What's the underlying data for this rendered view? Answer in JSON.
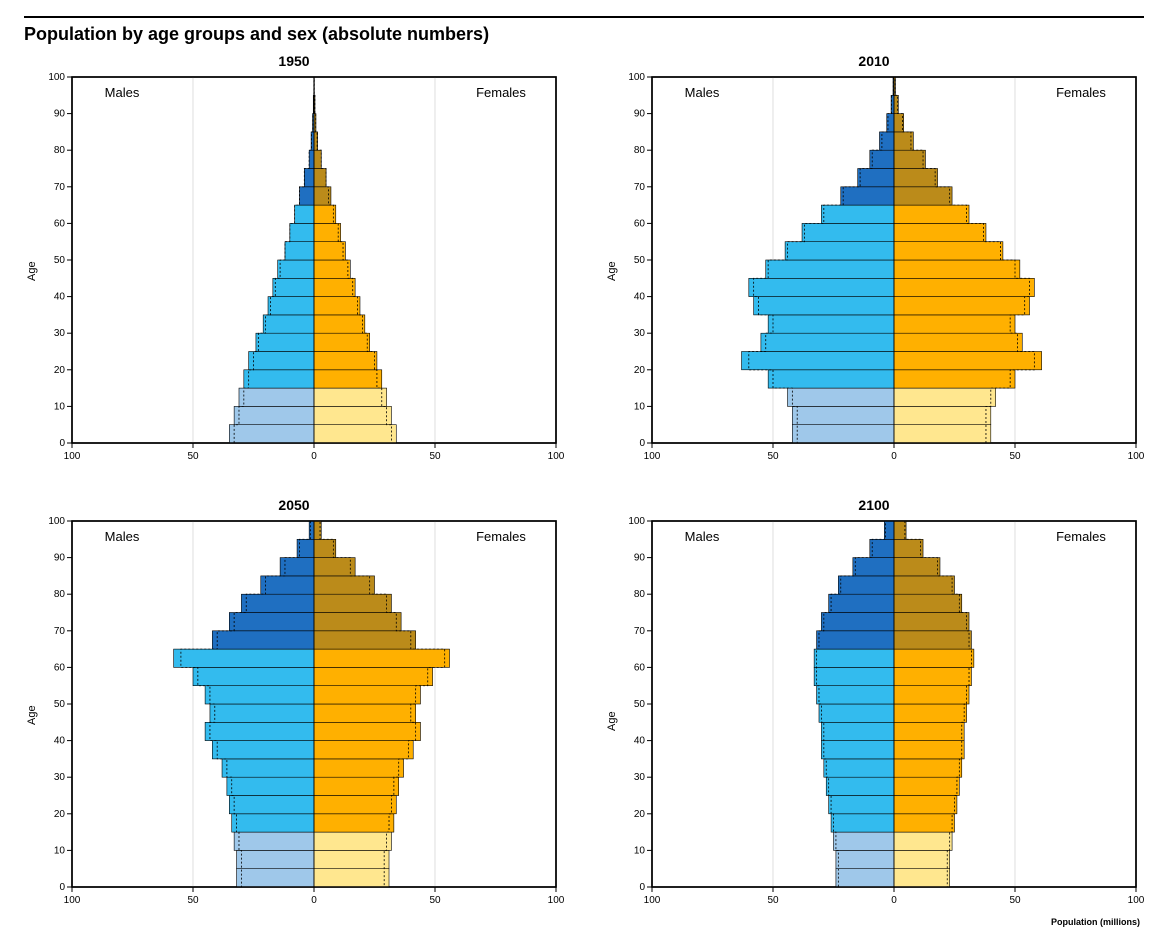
{
  "title": "Population by age groups and sex (absolute numbers)",
  "global_xlabel": "Population (millions)",
  "ylabel": "Age",
  "sex_labels": {
    "male": "Males",
    "female": "Females"
  },
  "label_font_size": 13,
  "axis_font_size": 10,
  "title_font_size": 14,
  "page_title_font_size": 18,
  "axes": {
    "x_limit": 100,
    "x_ticks": [
      100,
      50,
      0,
      50,
      100
    ],
    "y_limit": 100,
    "y_ticks": [
      0,
      10,
      20,
      30,
      40,
      50,
      60,
      70,
      80,
      90,
      100
    ]
  },
  "age_bins": [
    0,
    5,
    10,
    15,
    20,
    25,
    30,
    35,
    40,
    45,
    50,
    55,
    60,
    65,
    70,
    75,
    80,
    85,
    90,
    95
  ],
  "plot": {
    "background_color": "#ffffff",
    "border_color": "#000000",
    "grid_color": "#c9c9c9",
    "tick_color": "#000000",
    "text_color": "#000000"
  },
  "colors": {
    "male_child": "#9fc8ea",
    "male_work": "#33bbee",
    "male_old": "#1f6fc1",
    "female_child": "#ffe78f",
    "female_work": "#ffb000",
    "female_old": "#bb8b1a",
    "overlay_stroke": "#000000"
  },
  "age_group_breaks": {
    "child_max": 15,
    "work_max": 65
  },
  "panels": [
    {
      "year": "1950",
      "males": [
        35,
        33,
        31,
        29,
        27,
        24,
        21,
        19,
        17,
        15,
        12,
        10,
        8,
        6,
        4,
        2,
        1.2,
        0.6,
        0.3,
        0.1
      ],
      "females": [
        34,
        32,
        30,
        28,
        26,
        23,
        21,
        19,
        17,
        15,
        13,
        11,
        9,
        7,
        5,
        3,
        1.5,
        0.8,
        0.4,
        0.15
      ],
      "males_alt": [
        33,
        31,
        29,
        27,
        25,
        23,
        20,
        18,
        16,
        14,
        12,
        10,
        8,
        6,
        4,
        2,
        1.0,
        0.5,
        0.25,
        0.08
      ],
      "females_alt": [
        32,
        30,
        28,
        26,
        25,
        22,
        20,
        18,
        16,
        14,
        12,
        10,
        8,
        6,
        5,
        3,
        1.3,
        0.7,
        0.35,
        0.12
      ]
    },
    {
      "year": "2010",
      "males": [
        42,
        42,
        44,
        52,
        63,
        55,
        52,
        58,
        60,
        53,
        45,
        38,
        30,
        22,
        15,
        10,
        6,
        3,
        1.2,
        0.4
      ],
      "females": [
        40,
        40,
        42,
        50,
        61,
        53,
        50,
        56,
        58,
        52,
        45,
        38,
        31,
        24,
        18,
        13,
        8,
        4,
        1.8,
        0.6
      ],
      "males_alt": [
        40,
        40,
        42,
        50,
        60,
        53,
        50,
        56,
        58,
        52,
        44,
        37,
        29,
        21,
        14,
        9,
        5,
        2.5,
        1.0,
        0.3
      ],
      "females_alt": [
        38,
        38,
        40,
        48,
        58,
        51,
        48,
        54,
        56,
        50,
        44,
        37,
        30,
        23,
        17,
        12,
        7,
        3.5,
        1.5,
        0.5
      ]
    },
    {
      "year": "2050",
      "males": [
        32,
        32,
        33,
        34,
        35,
        36,
        38,
        42,
        45,
        43,
        45,
        50,
        58,
        42,
        35,
        30,
        22,
        14,
        7,
        2
      ],
      "females": [
        31,
        31,
        32,
        33,
        34,
        35,
        37,
        41,
        44,
        42,
        44,
        49,
        56,
        42,
        36,
        32,
        25,
        17,
        9,
        3
      ],
      "males_alt": [
        30,
        30,
        31,
        32,
        33,
        34,
        36,
        40,
        43,
        41,
        43,
        48,
        55,
        40,
        33,
        28,
        20,
        12,
        6,
        1.5
      ],
      "females_alt": [
        29,
        29,
        30,
        31,
        32,
        33,
        35,
        39,
        42,
        40,
        42,
        47,
        54,
        40,
        34,
        30,
        23,
        15,
        8,
        2.5
      ]
    },
    {
      "year": "2100",
      "males": [
        24,
        24,
        25,
        26,
        27,
        28,
        29,
        30,
        30,
        31,
        32,
        33,
        33,
        32,
        30,
        27,
        23,
        17,
        10,
        4
      ],
      "females": [
        23,
        23,
        24,
        25,
        26,
        27,
        28,
        29,
        29,
        30,
        31,
        32,
        33,
        32,
        31,
        28,
        25,
        19,
        12,
        5
      ],
      "males_alt": [
        23,
        23,
        24,
        25,
        26,
        27,
        28,
        29,
        29,
        30,
        31,
        32,
        32,
        31,
        29,
        26,
        22,
        16,
        9,
        3.5
      ],
      "females_alt": [
        22,
        22,
        23,
        24,
        25,
        26,
        27,
        28,
        28,
        29,
        30,
        31,
        32,
        31,
        30,
        27,
        24,
        18,
        11,
        4.5
      ]
    }
  ]
}
